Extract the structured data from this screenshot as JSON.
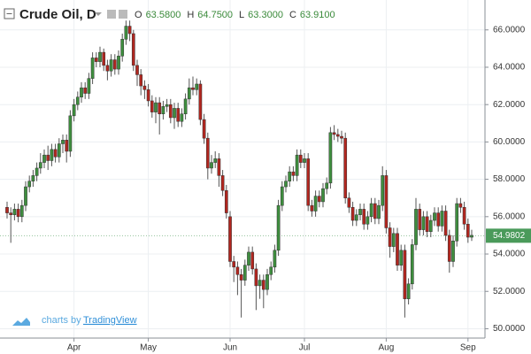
{
  "chart_data": {
    "type": "candlestick",
    "title": "Crude Oil, D",
    "ohlc_header": [
      {
        "label": "O",
        "value": "63.5800"
      },
      {
        "label": "H",
        "value": "64.7500"
      },
      {
        "label": "L",
        "value": "63.3000"
      },
      {
        "label": "C",
        "value": "63.9100"
      }
    ],
    "watermark": {
      "prefix": "charts by",
      "brand": "TradingView"
    },
    "up_color": "#3e8e3e",
    "down_color": "#b1261f",
    "last_price": {
      "value": 54.9802,
      "color": "#4a9a5a"
    },
    "ylim": [
      49.5,
      67.6
    ],
    "yticks": [
      {
        "value": 50,
        "label": "50.0000"
      },
      {
        "value": 52,
        "label": "52.0000"
      },
      {
        "value": 54,
        "label": "54.0000"
      },
      {
        "value": 56,
        "label": "56.0000"
      },
      {
        "value": 58,
        "label": "58.0000"
      },
      {
        "value": 60,
        "label": "60.0000"
      },
      {
        "value": 62,
        "label": "62.0000"
      },
      {
        "value": 64,
        "label": "64.0000"
      },
      {
        "value": 66,
        "label": "66.0000"
      }
    ],
    "grid": true,
    "categories": [
      null,
      null,
      null,
      null,
      null,
      null,
      null,
      null,
      null,
      null,
      null,
      null,
      null,
      null,
      null,
      null,
      null,
      null,
      "Apr",
      null,
      null,
      null,
      null,
      null,
      null,
      null,
      null,
      null,
      null,
      null,
      null,
      null,
      null,
      null,
      null,
      null,
      null,
      null,
      "May",
      null,
      null,
      null,
      null,
      null,
      null,
      null,
      null,
      null,
      null,
      null,
      null,
      null,
      null,
      null,
      null,
      null,
      null,
      null,
      null,
      null,
      "Jun",
      null,
      null,
      null,
      null,
      null,
      null,
      null,
      null,
      null,
      null,
      null,
      null,
      null,
      null,
      null,
      null,
      null,
      null,
      null,
      "Jul",
      null,
      null,
      null,
      null,
      null,
      null,
      null,
      null,
      null,
      null,
      null,
      null,
      null,
      null,
      null,
      null,
      null,
      null,
      null,
      null,
      null,
      "Aug",
      null,
      null,
      null,
      null,
      null,
      null,
      null,
      null,
      null,
      null,
      null,
      null,
      null,
      null,
      null,
      null,
      null,
      null,
      null,
      null,
      null,
      "Sep",
      null
    ],
    "open": [
      56.5,
      56.2,
      56.1,
      56.4,
      56.0,
      56.6,
      57.6,
      57.9,
      58.2,
      58.6,
      58.9,
      59.3,
      59.0,
      59.6,
      59.2,
      59.9,
      60.1,
      59.5,
      61.4,
      62.0,
      62.4,
      62.9,
      62.6,
      63.4,
      64.5,
      64.3,
      64.8,
      64.1,
      63.8,
      64.4,
      63.9,
      64.6,
      65.5,
      66.2,
      65.8,
      64.1,
      63.6,
      63.0,
      62.8,
      62.2,
      61.6,
      62.1,
      61.5,
      61.9,
      62.0,
      61.3,
      61.8,
      61.1,
      61.5,
      62.3,
      62.9,
      62.8,
      63.1,
      61.2,
      60.2,
      58.6,
      58.9,
      59.1,
      58.2,
      57.4,
      56.0,
      53.6,
      53.3,
      52.9,
      52.6,
      53.4,
      54.1,
      53.2,
      52.3,
      52.6,
      52.1,
      52.9,
      53.3,
      54.2,
      56.6,
      57.6,
      57.9,
      58.4,
      58.2,
      59.3,
      58.9,
      59.1,
      56.6,
      56.3,
      57.1,
      56.8,
      57.5,
      57.8,
      60.5,
      60.4,
      60.3,
      60.2,
      57.0,
      56.5,
      55.8,
      56.1,
      56.4,
      55.6,
      56.0,
      56.7,
      55.9,
      56.6,
      58.2,
      55.4,
      54.4,
      55.1,
      53.4,
      54.2,
      51.6,
      52.4,
      54.5,
      56.4,
      55.3,
      56.0,
      55.2,
      55.8,
      56.2,
      55.5,
      56.3,
      55.0,
      53.6,
      54.7,
      56.7,
      56.5,
      55.6,
      54.9
    ],
    "high": [
      56.8,
      56.5,
      56.7,
      56.7,
      56.9,
      57.9,
      58.2,
      58.5,
      58.9,
      59.4,
      59.6,
      59.8,
      59.9,
      59.9,
      60.2,
      60.4,
      60.4,
      61.7,
      62.3,
      62.7,
      63.2,
      63.2,
      63.7,
      64.8,
      64.8,
      65.1,
      65.0,
      64.4,
      64.7,
      64.7,
      64.9,
      65.8,
      66.5,
      66.5,
      66.0,
      64.4,
      63.9,
      63.3,
      63.1,
      62.5,
      62.4,
      62.4,
      62.2,
      62.3,
      62.3,
      62.1,
      62.1,
      61.8,
      62.6,
      63.4,
      63.5,
      63.4,
      63.3,
      61.5,
      60.5,
      59.3,
      59.5,
      59.4,
      58.5,
      57.7,
      56.3,
      53.9,
      53.6,
      53.2,
      53.7,
      54.4,
      54.4,
      53.5,
      52.9,
      52.9,
      53.2,
      53.6,
      54.5,
      56.9,
      57.9,
      58.2,
      58.7,
      58.7,
      59.6,
      59.6,
      59.4,
      59.4,
      56.9,
      57.4,
      57.4,
      57.8,
      58.1,
      60.8,
      60.9,
      60.7,
      60.6,
      60.5,
      57.3,
      56.8,
      56.4,
      56.7,
      56.7,
      56.3,
      57.0,
      57.0,
      56.9,
      58.7,
      58.5,
      55.7,
      55.4,
      55.4,
      54.5,
      54.5,
      52.7,
      54.8,
      57.0,
      56.7,
      56.3,
      56.3,
      56.1,
      56.5,
      56.5,
      56.6,
      56.6,
      55.3,
      55.0,
      57.0,
      57.0,
      56.8,
      55.9,
      55.3
    ],
    "low": [
      55.9,
      54.6,
      55.8,
      55.7,
      55.7,
      56.3,
      57.3,
      57.6,
      57.9,
      58.3,
      58.6,
      58.5,
      58.7,
      58.9,
      58.9,
      59.4,
      58.9,
      59.2,
      61.1,
      61.7,
      62.1,
      62.3,
      62.3,
      63.1,
      64.0,
      64.0,
      63.8,
      63.3,
      63.5,
      63.6,
      63.6,
      64.3,
      65.2,
      65.4,
      63.8,
      63.0,
      62.5,
      62.3,
      61.9,
      61.3,
      61.0,
      60.4,
      61.2,
      61.6,
      61.0,
      60.7,
      60.8,
      60.8,
      61.2,
      62.0,
      62.5,
      62.5,
      60.9,
      59.9,
      58.0,
      58.3,
      58.6,
      57.6,
      57.1,
      55.9,
      53.3,
      52.5,
      51.8,
      50.6,
      52.3,
      53.1,
      52.9,
      51.0,
      51.6,
      51.1,
      51.8,
      52.6,
      53.0,
      53.9,
      56.3,
      57.3,
      57.6,
      57.9,
      57.9,
      58.6,
      58.6,
      56.3,
      56.0,
      56.0,
      56.5,
      56.5,
      57.2,
      57.5,
      60.1,
      60.0,
      59.9,
      56.7,
      56.2,
      55.5,
      55.5,
      55.8,
      55.3,
      55.3,
      55.7,
      55.6,
      55.6,
      56.3,
      55.1,
      53.8,
      54.1,
      53.1,
      53.1,
      50.6,
      51.3,
      52.1,
      54.2,
      55.0,
      55.0,
      54.9,
      54.9,
      55.5,
      55.2,
      55.2,
      54.7,
      53.0,
      53.3,
      54.4,
      56.2,
      55.3,
      54.6,
      54.7
    ],
    "close": [
      56.2,
      56.1,
      56.4,
      56.0,
      56.6,
      57.6,
      57.9,
      58.2,
      58.6,
      58.9,
      59.3,
      59.0,
      59.6,
      59.2,
      59.9,
      60.1,
      59.5,
      61.4,
      62.0,
      62.4,
      62.9,
      62.6,
      63.4,
      64.5,
      64.3,
      64.8,
      64.1,
      63.8,
      64.4,
      63.9,
      64.6,
      65.5,
      66.2,
      65.8,
      64.1,
      63.6,
      63.0,
      62.8,
      62.2,
      61.6,
      62.1,
      61.5,
      61.9,
      62.0,
      61.3,
      61.8,
      61.1,
      61.5,
      62.3,
      62.9,
      62.8,
      63.1,
      61.2,
      60.2,
      58.6,
      58.9,
      59.1,
      58.2,
      57.4,
      56.2,
      53.6,
      53.3,
      52.9,
      52.6,
      53.4,
      54.1,
      53.2,
      52.3,
      52.6,
      52.1,
      52.9,
      53.3,
      54.2,
      56.6,
      57.6,
      57.9,
      58.4,
      58.2,
      59.3,
      58.9,
      59.1,
      56.6,
      56.3,
      57.1,
      56.8,
      57.5,
      57.8,
      60.5,
      60.4,
      60.3,
      60.2,
      57.0,
      56.5,
      55.8,
      56.1,
      56.4,
      55.6,
      56.0,
      56.7,
      55.9,
      56.6,
      58.2,
      55.4,
      54.4,
      55.1,
      53.4,
      54.2,
      51.6,
      52.4,
      54.5,
      56.4,
      55.3,
      56.0,
      55.2,
      55.8,
      56.2,
      55.5,
      56.3,
      55.0,
      53.6,
      54.7,
      56.7,
      56.5,
      55.6,
      54.9,
      55.0
    ]
  }
}
